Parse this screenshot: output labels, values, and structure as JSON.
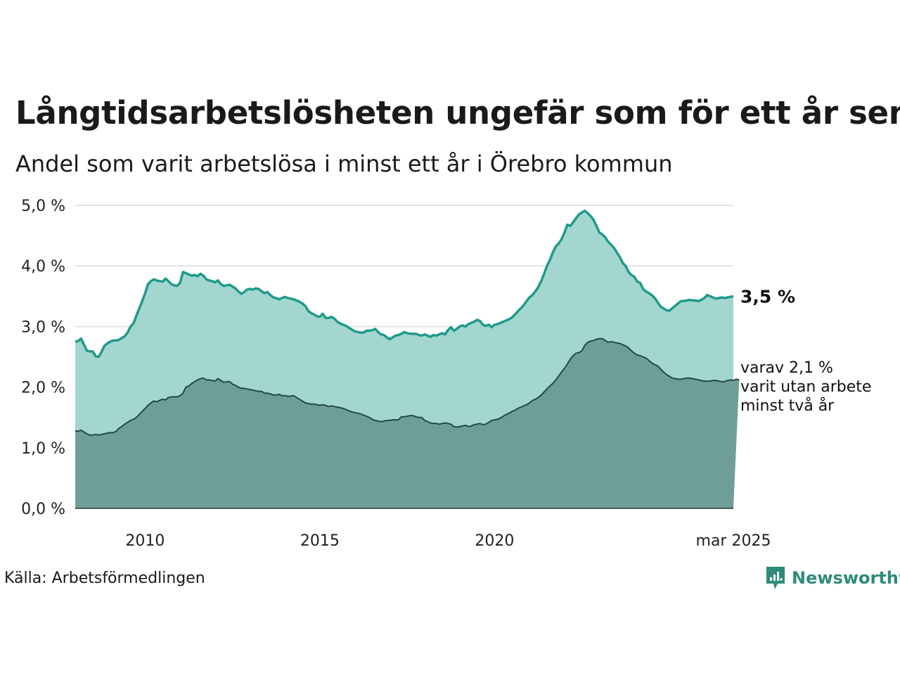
{
  "header": {
    "title": "Långtidsarbetslösheten ungefär som för ett år sen",
    "subtitle": "Andel som varit arbetslösa i minst ett år i Örebro kommun"
  },
  "chart_data": {
    "type": "area",
    "x_start": 2008.0,
    "x_step_months": 1,
    "ylim": [
      0,
      5
    ],
    "yticks": [
      "0,0 %",
      "1,0 %",
      "2,0 %",
      "3,0 %",
      "4,0 %",
      "5,0 %"
    ],
    "xticks": [
      "2010",
      "2015",
      "2020",
      "mar 2025"
    ],
    "grid": true,
    "colors": {
      "main_fill": "#a4d6d0",
      "main_line": "#1f9a8a",
      "sub_fill": "#6f9e98",
      "sub_line": "#234a45"
    },
    "series": [
      {
        "key": "main",
        "values": [
          2.75,
          2.76,
          2.8,
          2.7,
          2.6,
          2.59,
          2.59,
          2.51,
          2.5,
          2.58,
          2.68,
          2.72,
          2.75,
          2.77,
          2.77,
          2.78,
          2.81,
          2.84,
          2.9,
          3.0,
          3.05,
          3.18,
          3.3,
          3.42,
          3.55,
          3.7,
          3.75,
          3.78,
          3.76,
          3.75,
          3.74,
          3.79,
          3.75,
          3.7,
          3.68,
          3.67,
          3.72,
          3.9,
          3.88,
          3.86,
          3.84,
          3.85,
          3.83,
          3.87,
          3.84,
          3.78,
          3.76,
          3.75,
          3.73,
          3.76,
          3.7,
          3.67,
          3.68,
          3.69,
          3.66,
          3.63,
          3.58,
          3.54,
          3.57,
          3.61,
          3.62,
          3.61,
          3.63,
          3.62,
          3.58,
          3.55,
          3.57,
          3.52,
          3.48,
          3.47,
          3.45,
          3.47,
          3.49,
          3.47,
          3.46,
          3.45,
          3.43,
          3.41,
          3.38,
          3.34,
          3.26,
          3.22,
          3.2,
          3.17,
          3.16,
          3.21,
          3.14,
          3.14,
          3.16,
          3.13,
          3.08,
          3.05,
          3.03,
          3.01,
          2.98,
          2.95,
          2.92,
          2.91,
          2.9,
          2.9,
          2.93,
          2.93,
          2.94,
          2.96,
          2.91,
          2.87,
          2.86,
          2.82,
          2.79,
          2.82,
          2.85,
          2.86,
          2.88,
          2.91,
          2.89,
          2.88,
          2.88,
          2.88,
          2.86,
          2.85,
          2.87,
          2.85,
          2.83,
          2.86,
          2.85,
          2.87,
          2.89,
          2.87,
          2.94,
          2.99,
          2.93,
          2.96,
          3.0,
          3.02,
          3.0,
          3.04,
          3.06,
          3.08,
          3.11,
          3.09,
          3.03,
          3.01,
          3.03,
          2.99,
          3.03,
          3.04,
          3.06,
          3.08,
          3.1,
          3.12,
          3.15,
          3.2,
          3.25,
          3.3,
          3.35,
          3.42,
          3.48,
          3.52,
          3.58,
          3.65,
          3.75,
          3.87,
          4.0,
          4.1,
          4.22,
          4.32,
          4.37,
          4.44,
          4.55,
          4.68,
          4.66,
          4.72,
          4.79,
          4.85,
          4.88,
          4.91,
          4.87,
          4.82,
          4.76,
          4.66,
          4.55,
          4.52,
          4.47,
          4.4,
          4.35,
          4.3,
          4.22,
          4.15,
          4.05,
          4.0,
          3.9,
          3.85,
          3.82,
          3.74,
          3.72,
          3.62,
          3.58,
          3.55,
          3.52,
          3.47,
          3.4,
          3.33,
          3.3,
          3.27,
          3.26,
          3.3,
          3.34,
          3.38,
          3.42,
          3.42,
          3.43,
          3.44,
          3.43,
          3.43,
          3.42,
          3.44,
          3.47,
          3.52,
          3.5,
          3.48,
          3.46,
          3.47,
          3.48,
          3.47,
          3.48,
          3.49,
          3.5
        ]
      },
      {
        "key": "sub",
        "values": [
          1.28,
          1.27,
          1.29,
          1.26,
          1.23,
          1.21,
          1.21,
          1.22,
          1.21,
          1.22,
          1.23,
          1.24,
          1.25,
          1.25,
          1.27,
          1.32,
          1.35,
          1.39,
          1.42,
          1.45,
          1.47,
          1.5,
          1.55,
          1.6,
          1.65,
          1.7,
          1.74,
          1.77,
          1.76,
          1.78,
          1.8,
          1.79,
          1.83,
          1.84,
          1.84,
          1.84,
          1.86,
          1.9,
          2.0,
          2.02,
          2.06,
          2.09,
          2.12,
          2.14,
          2.15,
          2.12,
          2.12,
          2.11,
          2.1,
          2.14,
          2.11,
          2.08,
          2.09,
          2.09,
          2.05,
          2.03,
          2.0,
          1.98,
          1.98,
          1.97,
          1.96,
          1.95,
          1.94,
          1.93,
          1.93,
          1.9,
          1.9,
          1.89,
          1.87,
          1.87,
          1.88,
          1.86,
          1.86,
          1.85,
          1.85,
          1.86,
          1.83,
          1.8,
          1.77,
          1.74,
          1.73,
          1.72,
          1.72,
          1.71,
          1.7,
          1.71,
          1.7,
          1.68,
          1.69,
          1.68,
          1.67,
          1.66,
          1.65,
          1.63,
          1.61,
          1.59,
          1.58,
          1.57,
          1.56,
          1.54,
          1.52,
          1.5,
          1.47,
          1.45,
          1.44,
          1.43,
          1.44,
          1.45,
          1.45,
          1.46,
          1.46,
          1.46,
          1.51,
          1.51,
          1.52,
          1.53,
          1.53,
          1.51,
          1.5,
          1.5,
          1.45,
          1.43,
          1.41,
          1.4,
          1.4,
          1.39,
          1.4,
          1.41,
          1.4,
          1.39,
          1.35,
          1.34,
          1.35,
          1.36,
          1.37,
          1.35,
          1.36,
          1.38,
          1.39,
          1.4,
          1.38,
          1.39,
          1.42,
          1.45,
          1.46,
          1.47,
          1.49,
          1.52,
          1.55,
          1.57,
          1.6,
          1.62,
          1.65,
          1.67,
          1.69,
          1.71,
          1.74,
          1.78,
          1.8,
          1.83,
          1.87,
          1.92,
          1.97,
          2.02,
          2.06,
          2.12,
          2.18,
          2.25,
          2.31,
          2.38,
          2.46,
          2.52,
          2.56,
          2.57,
          2.6,
          2.69,
          2.74,
          2.76,
          2.77,
          2.79,
          2.8,
          2.8,
          2.77,
          2.74,
          2.75,
          2.74,
          2.73,
          2.72,
          2.7,
          2.68,
          2.65,
          2.6,
          2.56,
          2.53,
          2.52,
          2.5,
          2.48,
          2.44,
          2.4,
          2.37,
          2.35,
          2.3,
          2.25,
          2.21,
          2.18,
          2.15,
          2.14,
          2.13,
          2.13,
          2.14,
          2.15,
          2.15,
          2.14,
          2.13,
          2.12,
          2.11,
          2.1,
          2.1,
          2.1,
          2.11,
          2.11,
          2.1,
          2.09,
          2.09,
          2.11,
          2.12,
          2.11,
          2.13,
          2.12
        ]
      }
    ],
    "end_label_main": "3,5 %",
    "end_label_sub_lines": [
      "varav 2,1 %",
      "varit utan arbete",
      "minst två år"
    ]
  },
  "footer": {
    "source": "Källa: Arbetsförmedlingen",
    "brand": "Newsworthy"
  }
}
